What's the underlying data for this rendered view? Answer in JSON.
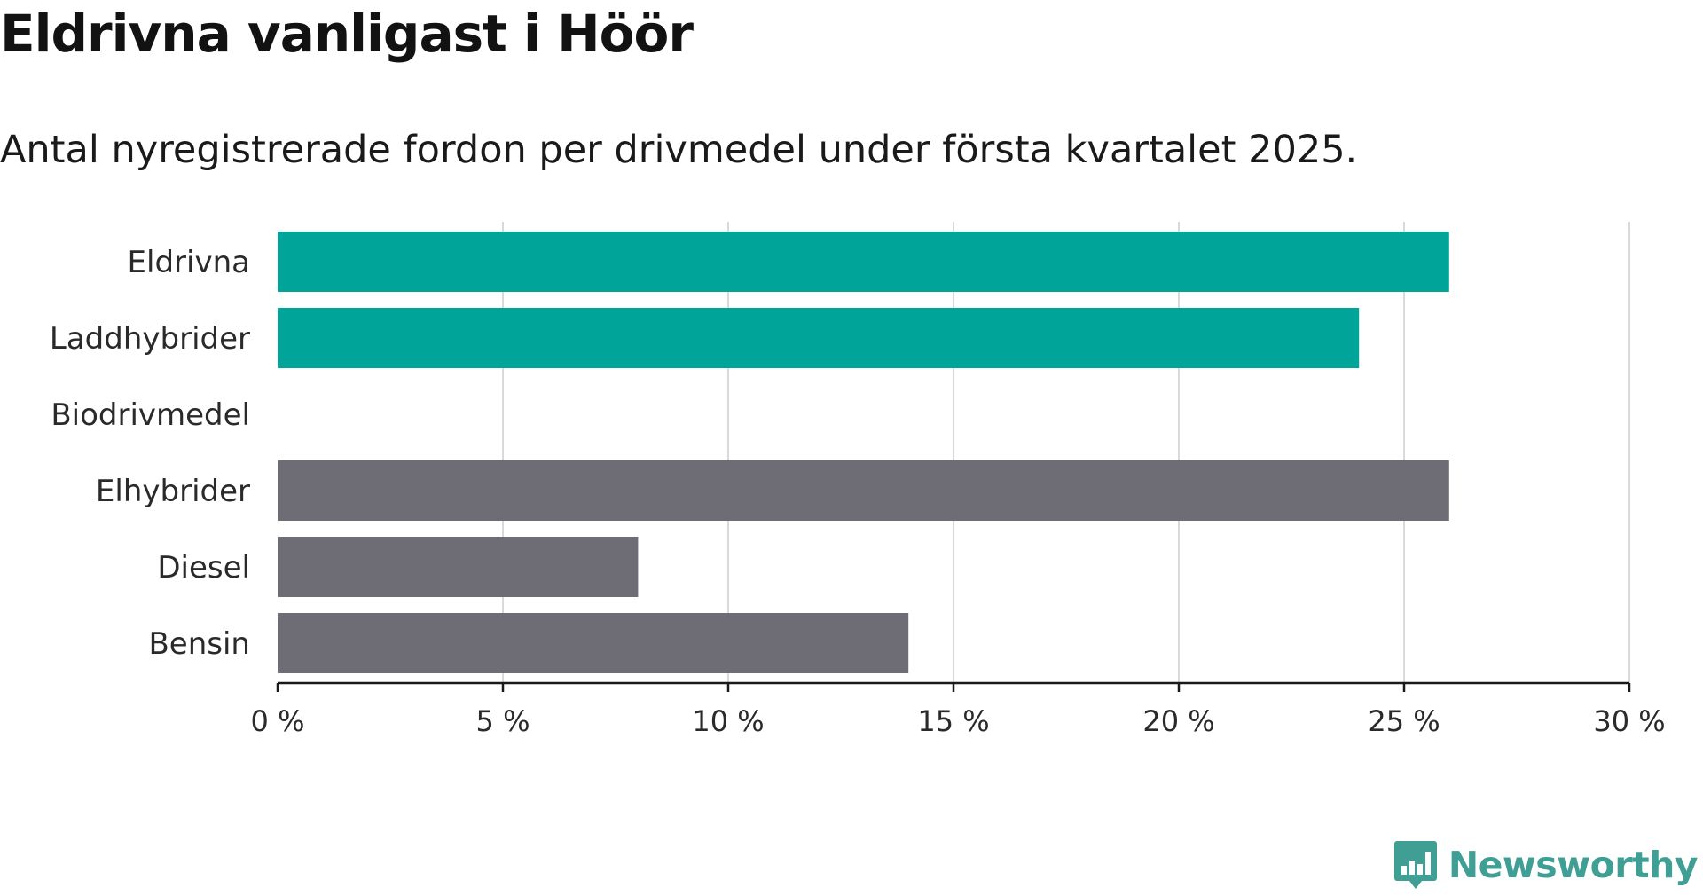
{
  "title": "Eldrivna vanligast i Höör",
  "subtitle": "Antal nyregistrerade fordon per drivmedel under första kvartalet 2025.",
  "brand": "Newsworthy",
  "colors": {
    "highlight": "#00a499",
    "neutral": "#6e6d75",
    "grid": "#d9d9d9",
    "axis": "#1a1a1a",
    "brand": "#3f9f94"
  },
  "chart_data": {
    "type": "bar",
    "orientation": "horizontal",
    "categories": [
      "Eldrivna",
      "Laddhybrider",
      "Biodrivmedel",
      "Elhybrider",
      "Diesel",
      "Bensin"
    ],
    "values": [
      26,
      24,
      0,
      26,
      8,
      14
    ],
    "highlighted": [
      true,
      true,
      true,
      false,
      false,
      false
    ],
    "xlim": [
      0,
      30
    ],
    "xticks": [
      0,
      5,
      10,
      15,
      20,
      25,
      30
    ],
    "tick_labels": [
      "0 %",
      "5 %",
      "10 %",
      "15 %",
      "20 %",
      "25 %",
      "30 %"
    ],
    "grid": "vertical",
    "legend": "none",
    "xlabel": "",
    "ylabel": ""
  }
}
